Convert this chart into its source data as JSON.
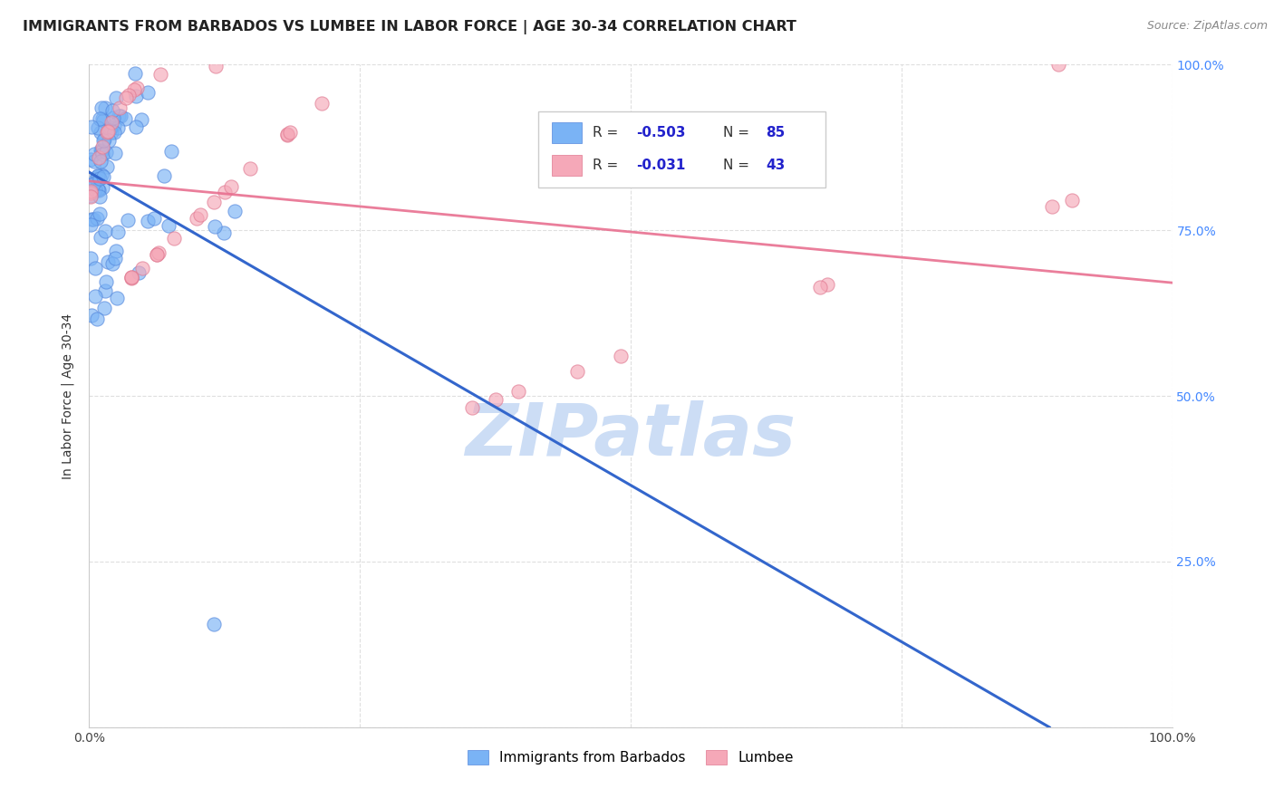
{
  "title": "IMMIGRANTS FROM BARBADOS VS LUMBEE IN LABOR FORCE | AGE 30-34 CORRELATION CHART",
  "source": "Source: ZipAtlas.com",
  "ylabel": "In Labor Force | Age 30-34",
  "xlim": [
    0,
    1.0
  ],
  "ylim": [
    0,
    1.0
  ],
  "y_tick_positions_right": [
    1.0,
    0.75,
    0.5,
    0.25
  ],
  "y_tick_labels_right": [
    "100.0%",
    "75.0%",
    "50.0%",
    "25.0%"
  ],
  "barbados_color": "#7ab3f5",
  "barbados_edge": "#5588dd",
  "lumbee_color": "#f5a8b8",
  "lumbee_edge": "#e07890",
  "trend_blue": "#3366cc",
  "trend_pink": "#e87090",
  "barbados_R": -0.503,
  "barbados_N": 85,
  "lumbee_R": -0.031,
  "lumbee_N": 43,
  "legend_text_color": "#333333",
  "legend_value_color": "#2222cc",
  "watermark": "ZIPatlas",
  "watermark_color": "#ccddf5",
  "grid_color": "#d8d8d8",
  "title_fontsize": 11.5,
  "axis_label_fontsize": 10,
  "tick_label_fontsize": 10,
  "right_axis_color": "#4488ff",
  "source_color": "#888888"
}
